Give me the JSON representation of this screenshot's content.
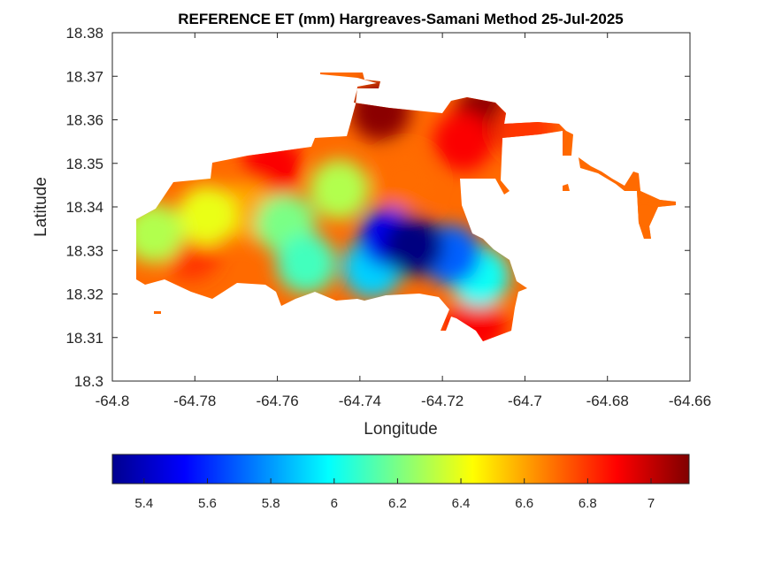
{
  "chart_data": {
    "type": "heatmap",
    "title": "REFERENCE ET (mm) Hargreaves-Samani Method  25-Jul-2025",
    "xlabel": "Longitude",
    "ylabel": "Latitude",
    "xlim": [
      -64.8,
      -64.66
    ],
    "ylim": [
      18.3,
      18.38
    ],
    "x_ticks": [
      "-64.8",
      "-64.78",
      "-64.76",
      "-64.74",
      "-64.72",
      "-64.7",
      "-64.68",
      "-64.66"
    ],
    "y_ticks": [
      "18.38",
      "18.37",
      "18.36",
      "18.35",
      "18.34",
      "18.33",
      "18.32",
      "18.31",
      "18.3"
    ],
    "colorbar": {
      "colormap": "jet",
      "range": [
        5.3,
        7.12
      ],
      "ticks": [
        "5.4",
        "5.6",
        "5.8",
        "6",
        "6.2",
        "6.4",
        "6.6",
        "6.8",
        "7"
      ]
    },
    "features": [
      {
        "lon": -64.727,
        "lat": 18.331,
        "value": 5.3
      },
      {
        "lon": -64.733,
        "lat": 18.333,
        "value": 5.5
      },
      {
        "lon": -64.718,
        "lat": 18.329,
        "value": 5.7
      },
      {
        "lon": -64.737,
        "lat": 18.326,
        "value": 5.9
      },
      {
        "lon": -64.711,
        "lat": 18.324,
        "value": 6.0
      },
      {
        "lon": -64.753,
        "lat": 18.327,
        "value": 6.1
      },
      {
        "lon": -64.758,
        "lat": 18.336,
        "value": 6.2
      },
      {
        "lon": -64.745,
        "lat": 18.344,
        "value": 6.3
      },
      {
        "lon": -64.777,
        "lat": 18.338,
        "value": 6.4
      },
      {
        "lon": -64.79,
        "lat": 18.334,
        "value": 6.3
      },
      {
        "lon": -64.781,
        "lat": 18.33,
        "value": 6.8
      },
      {
        "lon": -64.767,
        "lat": 18.339,
        "value": 6.6
      },
      {
        "lon": -64.761,
        "lat": 18.349,
        "value": 6.9
      },
      {
        "lon": -64.729,
        "lat": 18.346,
        "value": 6.7
      },
      {
        "lon": -64.735,
        "lat": 18.362,
        "value": 7.1
      },
      {
        "lon": -64.715,
        "lat": 18.355,
        "value": 6.9
      },
      {
        "lon": -64.71,
        "lat": 18.361,
        "value": 7.1
      },
      {
        "lon": -64.7,
        "lat": 18.358,
        "value": 6.8
      },
      {
        "lon": -64.671,
        "lat": 18.338,
        "value": 6.7
      },
      {
        "lon": -64.712,
        "lat": 18.313,
        "value": 6.9
      }
    ]
  }
}
